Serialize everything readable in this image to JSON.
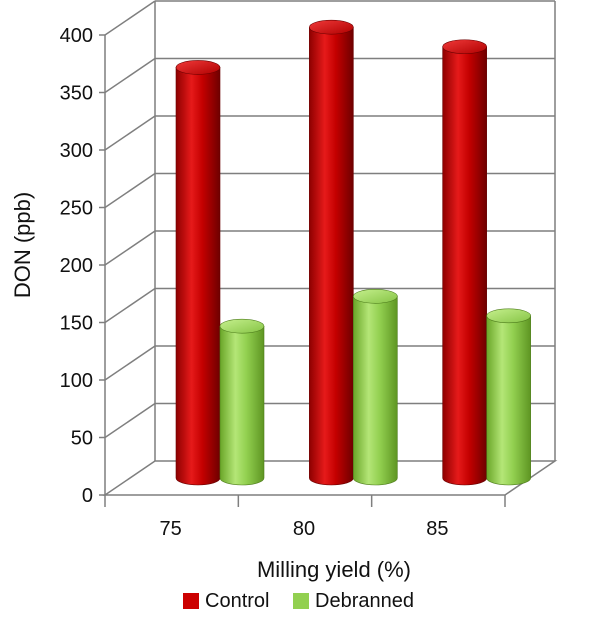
{
  "chart_data": {
    "type": "bar",
    "categories": [
      "75",
      "80",
      "85"
    ],
    "series": [
      {
        "name": "Control",
        "values": [
          357,
          392,
          375
        ],
        "color": "#cc0000"
      },
      {
        "name": "Debranned",
        "values": [
          132,
          158,
          141
        ],
        "color": "#92d050"
      }
    ],
    "xlabel": "Milling yield (%)",
    "ylabel": "DON (ppb)",
    "ylim": [
      0,
      400
    ],
    "yticks": [
      0,
      50,
      100,
      150,
      200,
      250,
      300,
      350,
      400
    ],
    "grid": true,
    "three_d": true,
    "legend_position": "bottom"
  }
}
